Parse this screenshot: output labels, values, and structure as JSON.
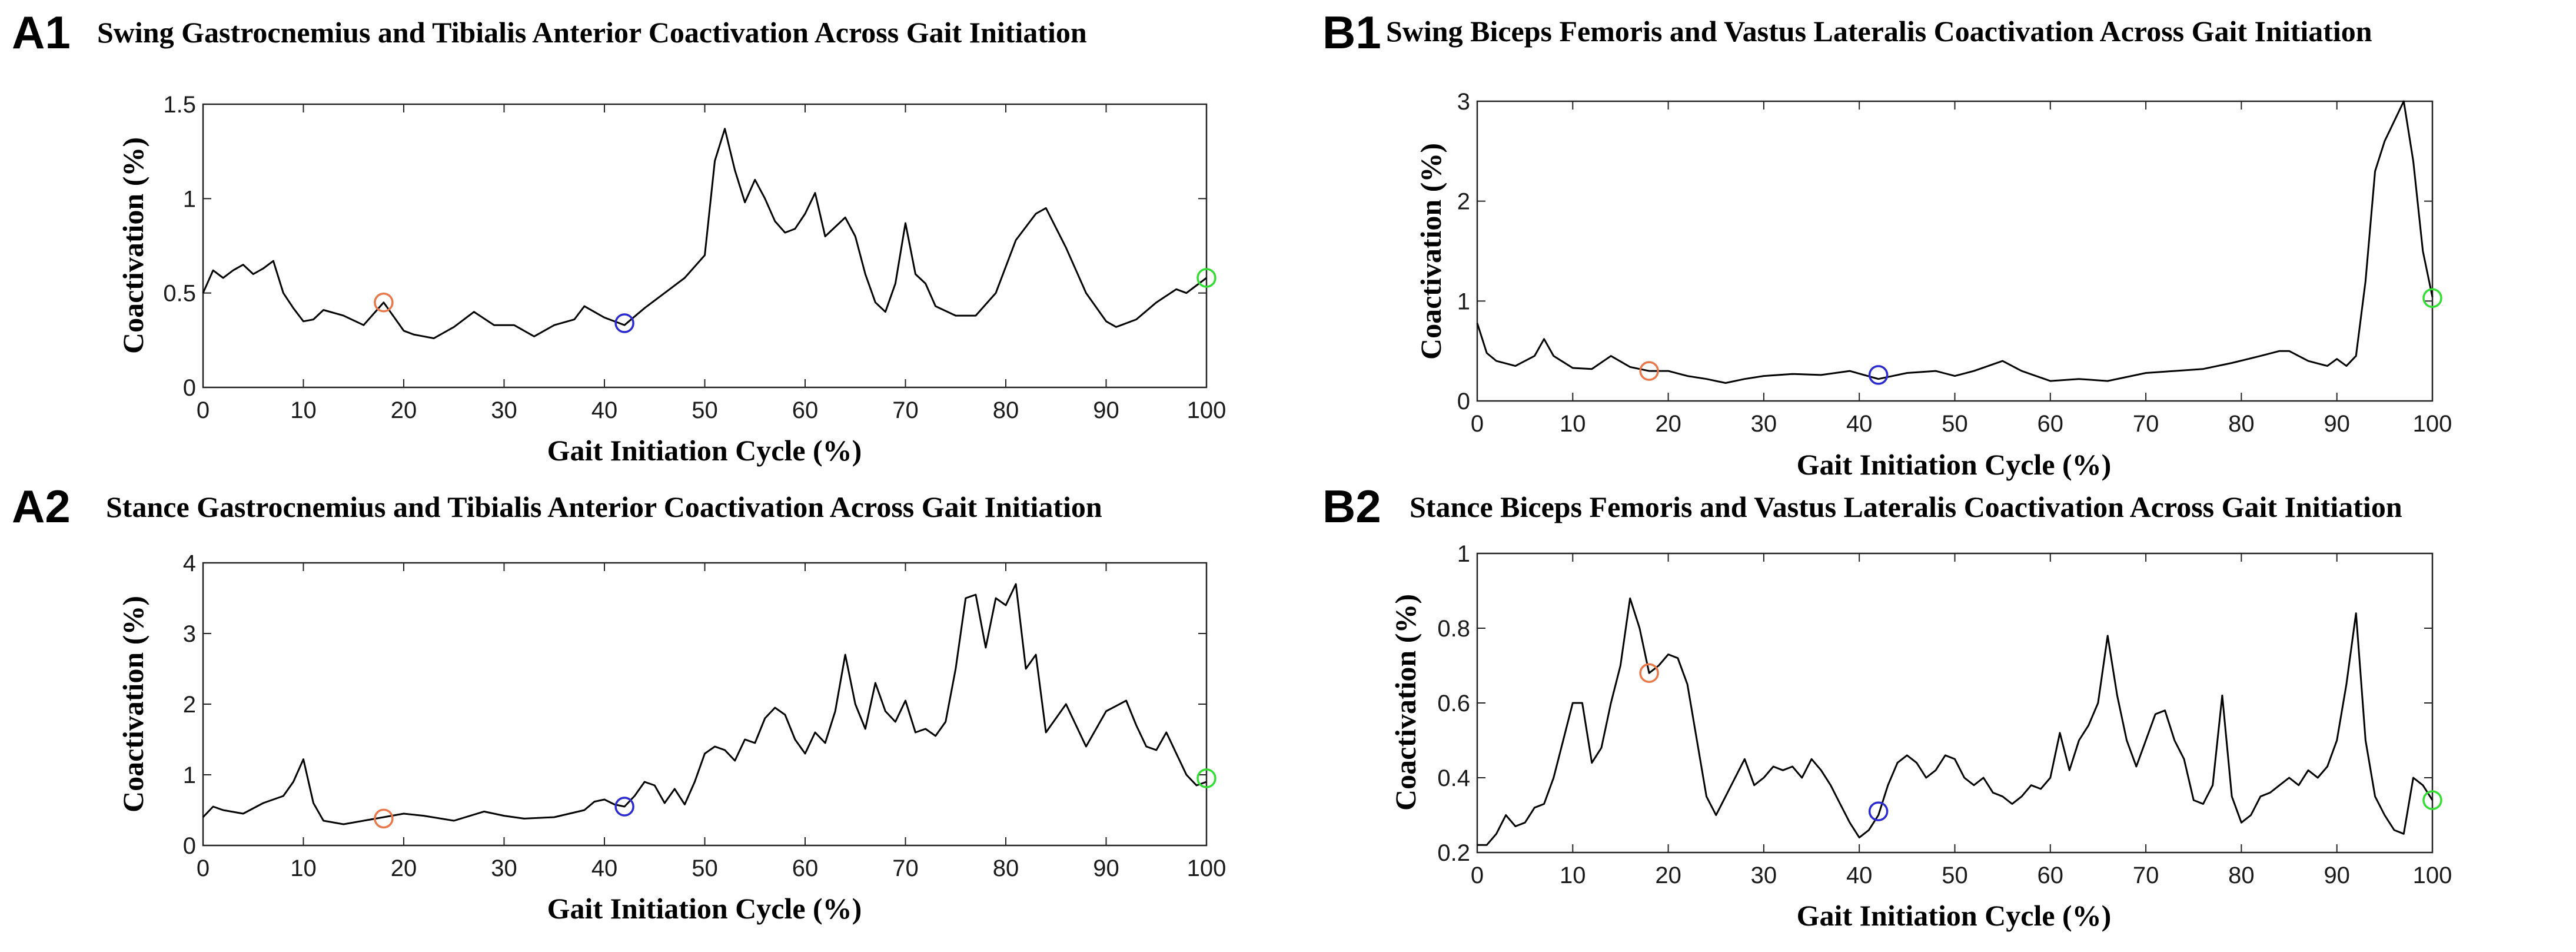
{
  "chart_data": [
    {
      "type": "line",
      "id": "A1",
      "panel_label": "A1",
      "title": "Swing Gastrocnemius and Tibialis  Anterior Coactivation Across Gait Initiation",
      "xlabel": "Gait Initiation Cycle (%)",
      "ylabel": "Coactivation (%)",
      "xlim": [
        0,
        100
      ],
      "ylim": [
        0,
        1.5
      ],
      "xticks": [
        0,
        10,
        20,
        30,
        40,
        50,
        60,
        70,
        80,
        90,
        100
      ],
      "yticks": [
        0,
        0.5,
        1,
        1.5
      ],
      "ytick_labels": [
        "0",
        "0.5",
        "1",
        "1.5"
      ],
      "series": [
        {
          "name": "coactivation",
          "x": [
            0,
            1,
            2,
            3,
            4,
            5,
            6,
            7,
            8,
            9,
            10,
            11,
            12,
            14,
            16,
            18,
            20,
            21,
            23,
            25,
            27,
            29,
            31,
            33,
            35,
            37,
            38,
            40,
            42,
            44,
            46,
            48,
            50,
            51,
            52,
            53,
            54,
            55,
            56,
            57,
            58,
            59,
            60,
            61,
            62,
            63,
            64,
            65,
            66,
            67,
            68,
            69,
            70,
            71,
            72,
            73,
            75,
            77,
            79,
            81,
            83,
            84,
            86,
            88,
            90,
            91,
            93,
            95,
            97,
            98,
            100
          ],
          "y": [
            0.5,
            0.62,
            0.58,
            0.62,
            0.65,
            0.6,
            0.63,
            0.67,
            0.5,
            0.42,
            0.35,
            0.36,
            0.41,
            0.38,
            0.33,
            0.45,
            0.3,
            0.28,
            0.26,
            0.32,
            0.4,
            0.33,
            0.33,
            0.27,
            0.33,
            0.36,
            0.43,
            0.37,
            0.33,
            0.42,
            0.5,
            0.58,
            0.7,
            1.2,
            1.37,
            1.15,
            0.98,
            1.1,
            1.0,
            0.88,
            0.82,
            0.84,
            0.92,
            1.03,
            0.8,
            0.85,
            0.9,
            0.8,
            0.6,
            0.45,
            0.4,
            0.55,
            0.87,
            0.6,
            0.55,
            0.43,
            0.38,
            0.38,
            0.5,
            0.78,
            0.92,
            0.95,
            0.74,
            0.5,
            0.35,
            0.32,
            0.36,
            0.45,
            0.52,
            0.5,
            0.58
          ]
        }
      ],
      "markers": [
        {
          "x": 18,
          "y": 0.45,
          "color": "#e8784a"
        },
        {
          "x": 42,
          "y": 0.34,
          "color": "#2a2ad0"
        },
        {
          "x": 100,
          "y": 0.58,
          "color": "#33dd33"
        }
      ]
    },
    {
      "type": "line",
      "id": "B1",
      "panel_label": "B1",
      "title": "Swing Biceps Femoris and Vastus Lateralis Coactivation Across Gait Initiation",
      "xlabel": "Gait Initiation Cycle (%)",
      "ylabel": "Coactivation (%)",
      "xlim": [
        0,
        100
      ],
      "ylim": [
        0,
        3
      ],
      "xticks": [
        0,
        10,
        20,
        30,
        40,
        50,
        60,
        70,
        80,
        90,
        100
      ],
      "yticks": [
        0,
        1,
        2,
        3
      ],
      "ytick_labels": [
        "0",
        "1",
        "2",
        "3"
      ],
      "series": [
        {
          "name": "coactivation",
          "x": [
            0,
            1,
            2,
            4,
            6,
            7,
            8,
            10,
            12,
            14,
            16,
            18,
            20,
            22,
            24,
            26,
            28,
            30,
            33,
            36,
            39,
            42,
            45,
            48,
            50,
            52,
            55,
            57,
            60,
            63,
            66,
            70,
            73,
            76,
            79,
            82,
            84,
            85,
            87,
            89,
            90,
            91,
            92,
            93,
            94,
            95,
            96,
            97,
            98,
            99,
            100
          ],
          "y": [
            0.78,
            0.48,
            0.4,
            0.35,
            0.45,
            0.62,
            0.45,
            0.33,
            0.32,
            0.45,
            0.34,
            0.3,
            0.3,
            0.25,
            0.22,
            0.18,
            0.22,
            0.25,
            0.27,
            0.26,
            0.3,
            0.22,
            0.28,
            0.3,
            0.25,
            0.3,
            0.4,
            0.3,
            0.2,
            0.22,
            0.2,
            0.28,
            0.3,
            0.32,
            0.38,
            0.45,
            0.5,
            0.5,
            0.4,
            0.35,
            0.42,
            0.35,
            0.45,
            1.2,
            2.3,
            2.6,
            2.8,
            3.0,
            2.4,
            1.5,
            1.04
          ]
        }
      ],
      "markers": [
        {
          "x": 18,
          "y": 0.3,
          "color": "#e8784a"
        },
        {
          "x": 42,
          "y": 0.26,
          "color": "#2a2ad0"
        },
        {
          "x": 100,
          "y": 1.03,
          "color": "#33dd33"
        }
      ]
    },
    {
      "type": "line",
      "id": "A2",
      "panel_label": "A2",
      "title": "Stance Gastrocnemius and Tibialis  Anterior Coactivation Across Gait Initiation",
      "xlabel": "Gait Initiation Cycle (%)",
      "ylabel": "Coactivation (%)",
      "xlim": [
        0,
        100
      ],
      "ylim": [
        0,
        4
      ],
      "xticks": [
        0,
        10,
        20,
        30,
        40,
        50,
        60,
        70,
        80,
        90,
        100
      ],
      "yticks": [
        0,
        1,
        2,
        3,
        4
      ],
      "ytick_labels": [
        "0",
        "1",
        "2",
        "3",
        "4"
      ],
      "series": [
        {
          "name": "coactivation",
          "x": [
            0,
            1,
            2,
            4,
            6,
            8,
            9,
            10,
            11,
            12,
            14,
            16,
            18,
            20,
            22,
            25,
            28,
            30,
            32,
            35,
            38,
            39,
            40,
            41,
            42,
            43,
            44,
            45,
            46,
            47,
            48,
            49,
            50,
            51,
            52,
            53,
            54,
            55,
            56,
            57,
            58,
            59,
            60,
            61,
            62,
            63,
            64,
            65,
            66,
            67,
            68,
            69,
            70,
            71,
            72,
            73,
            74,
            75,
            76,
            77,
            78,
            79,
            80,
            81,
            82,
            83,
            84,
            86,
            88,
            90,
            92,
            93,
            94,
            95,
            96,
            97,
            98,
            99,
            100
          ],
          "y": [
            0.4,
            0.55,
            0.5,
            0.45,
            0.6,
            0.7,
            0.9,
            1.22,
            0.6,
            0.35,
            0.3,
            0.35,
            0.4,
            0.45,
            0.42,
            0.35,
            0.48,
            0.42,
            0.38,
            0.4,
            0.5,
            0.62,
            0.65,
            0.58,
            0.55,
            0.7,
            0.9,
            0.85,
            0.6,
            0.8,
            0.58,
            0.9,
            1.3,
            1.4,
            1.35,
            1.2,
            1.5,
            1.45,
            1.8,
            1.95,
            1.85,
            1.5,
            1.3,
            1.6,
            1.45,
            1.9,
            2.7,
            2.0,
            1.65,
            2.3,
            1.9,
            1.75,
            2.05,
            1.6,
            1.65,
            1.55,
            1.75,
            2.5,
            3.5,
            3.55,
            2.8,
            3.5,
            3.4,
            3.7,
            2.5,
            2.7,
            1.6,
            2.0,
            1.4,
            1.9,
            2.05,
            1.7,
            1.4,
            1.35,
            1.6,
            1.3,
            1.0,
            0.85,
            0.9
          ]
        }
      ],
      "markers": [
        {
          "x": 18,
          "y": 0.38,
          "color": "#e8784a"
        },
        {
          "x": 42,
          "y": 0.55,
          "color": "#2a2ad0"
        },
        {
          "x": 100,
          "y": 0.95,
          "color": "#33dd33"
        }
      ]
    },
    {
      "type": "line",
      "id": "B2",
      "panel_label": "B2",
      "title": "Stance Biceps Femoris and Vastus Lateralis Coactivation Across Gait Initiation",
      "xlabel": "Gait Initiation Cycle (%)",
      "ylabel": "Coactivation (%)",
      "xlim": [
        0,
        100
      ],
      "ylim": [
        0.2,
        1.0
      ],
      "xticks": [
        0,
        10,
        20,
        30,
        40,
        50,
        60,
        70,
        80,
        90,
        100
      ],
      "yticks": [
        0.2,
        0.4,
        0.6,
        0.8,
        1.0
      ],
      "ytick_labels": [
        "0.2",
        "0.4",
        "0.6",
        "0.8",
        "1"
      ],
      "series": [
        {
          "name": "coactivation",
          "x": [
            0,
            1,
            2,
            3,
            4,
            5,
            6,
            7,
            8,
            9,
            10,
            11,
            12,
            13,
            14,
            15,
            16,
            17,
            18,
            19,
            20,
            21,
            22,
            23,
            24,
            25,
            26,
            27,
            28,
            29,
            30,
            31,
            32,
            33,
            34,
            35,
            36,
            37,
            38,
            39,
            40,
            41,
            42,
            43,
            44,
            45,
            46,
            47,
            48,
            49,
            50,
            51,
            52,
            53,
            54,
            55,
            56,
            57,
            58,
            59,
            60,
            61,
            62,
            63,
            64,
            65,
            66,
            67,
            68,
            69,
            70,
            71,
            72,
            73,
            74,
            75,
            76,
            77,
            78,
            79,
            80,
            81,
            82,
            83,
            84,
            85,
            86,
            87,
            88,
            89,
            90,
            91,
            92,
            93,
            94,
            95,
            96,
            97,
            98,
            99,
            100
          ],
          "y": [
            0.22,
            0.22,
            0.25,
            0.3,
            0.27,
            0.28,
            0.32,
            0.33,
            0.4,
            0.5,
            0.6,
            0.6,
            0.44,
            0.48,
            0.6,
            0.7,
            0.88,
            0.8,
            0.68,
            0.7,
            0.73,
            0.72,
            0.65,
            0.5,
            0.35,
            0.3,
            0.35,
            0.4,
            0.45,
            0.38,
            0.4,
            0.43,
            0.42,
            0.43,
            0.4,
            0.45,
            0.42,
            0.38,
            0.33,
            0.28,
            0.24,
            0.26,
            0.3,
            0.38,
            0.44,
            0.46,
            0.44,
            0.4,
            0.42,
            0.46,
            0.45,
            0.4,
            0.38,
            0.4,
            0.36,
            0.35,
            0.33,
            0.35,
            0.38,
            0.37,
            0.4,
            0.52,
            0.42,
            0.5,
            0.54,
            0.6,
            0.78,
            0.62,
            0.5,
            0.43,
            0.5,
            0.57,
            0.58,
            0.5,
            0.45,
            0.34,
            0.33,
            0.38,
            0.62,
            0.35,
            0.28,
            0.3,
            0.35,
            0.36,
            0.38,
            0.4,
            0.38,
            0.42,
            0.4,
            0.43,
            0.5,
            0.65,
            0.84,
            0.5,
            0.35,
            0.3,
            0.26,
            0.25,
            0.4,
            0.38,
            0.34
          ]
        }
      ],
      "markers": [
        {
          "x": 18,
          "y": 0.68,
          "color": "#e8784a"
        },
        {
          "x": 42,
          "y": 0.31,
          "color": "#2a2ad0"
        },
        {
          "x": 100,
          "y": 0.34,
          "color": "#33dd33"
        }
      ]
    }
  ]
}
